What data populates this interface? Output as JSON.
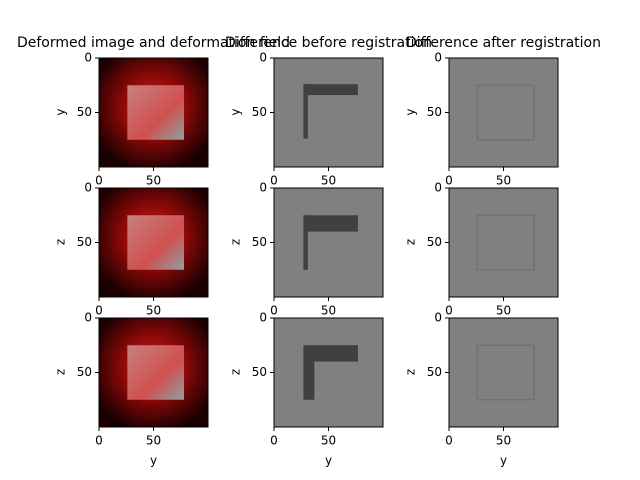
{
  "chart_data": [
    {
      "type": "image",
      "title": "Deformed image and deformation field",
      "ylabel": "y",
      "xlim": [
        0,
        100
      ],
      "ylim": [
        100,
        0
      ],
      "xticks": [
        0,
        50
      ],
      "yticks": [
        0,
        50
      ]
    },
    {
      "type": "image",
      "title": "Difference before registration",
      "ylabel": "y",
      "xlim": [
        0,
        100
      ],
      "ylim": [
        100,
        0
      ],
      "xticks": [
        0,
        50
      ],
      "yticks": [
        0,
        50
      ]
    },
    {
      "type": "image",
      "title": "Difference after registration",
      "ylabel": "y",
      "xlim": [
        0,
        100
      ],
      "ylim": [
        100,
        0
      ],
      "xticks": [
        0,
        50
      ],
      "yticks": [
        0,
        50
      ]
    },
    {
      "type": "image",
      "ylabel": "z",
      "xlim": [
        0,
        100
      ],
      "ylim": [
        100,
        0
      ],
      "xticks": [
        0,
        50
      ],
      "yticks": [
        0,
        50
      ]
    },
    {
      "type": "image",
      "ylabel": "z",
      "xlim": [
        0,
        100
      ],
      "ylim": [
        100,
        0
      ],
      "xticks": [
        0,
        50
      ],
      "yticks": [
        0,
        50
      ]
    },
    {
      "type": "image",
      "ylabel": "z",
      "xlim": [
        0,
        100
      ],
      "ylim": [
        100,
        0
      ],
      "xticks": [
        0,
        50
      ],
      "yticks": [
        0,
        50
      ]
    },
    {
      "type": "image",
      "xlabel": "y",
      "ylabel": "z",
      "xlim": [
        0,
        100
      ],
      "ylim": [
        100,
        0
      ],
      "xticks": [
        0,
        50
      ],
      "yticks": [
        0,
        50
      ]
    },
    {
      "type": "image",
      "xlabel": "y",
      "ylabel": "z",
      "xlim": [
        0,
        100
      ],
      "ylim": [
        100,
        0
      ],
      "xticks": [
        0,
        50
      ],
      "yticks": [
        0,
        50
      ]
    },
    {
      "type": "image",
      "xlabel": "y",
      "ylabel": "z",
      "xlim": [
        0,
        100
      ],
      "ylim": [
        100,
        0
      ],
      "xticks": [
        0,
        50
      ],
      "yticks": [
        0,
        50
      ]
    }
  ]
}
